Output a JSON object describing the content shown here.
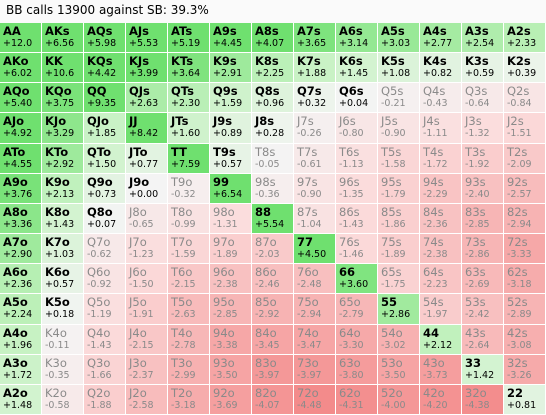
{
  "title": "BB calls 13900 against SB: 39.3%",
  "colors": {
    "call_strong": "#6fe06f",
    "call_light": "#c6f2c2",
    "neutral": "#f4f4f4",
    "fold_light": "#fbdcdc",
    "fold_strong": "#f38a8a"
  },
  "rows": [
    [
      {
        "hand": "AA",
        "ev": "+12.0",
        "call": true
      },
      {
        "hand": "AKs",
        "ev": "+6.56",
        "call": true
      },
      {
        "hand": "AQs",
        "ev": "+5.98",
        "call": true
      },
      {
        "hand": "AJs",
        "ev": "+5.53",
        "call": true
      },
      {
        "hand": "ATs",
        "ev": "+5.19",
        "call": true
      },
      {
        "hand": "A9s",
        "ev": "+4.45",
        "call": true
      },
      {
        "hand": "A8s",
        "ev": "+4.07",
        "call": true
      },
      {
        "hand": "A7s",
        "ev": "+3.65",
        "call": true
      },
      {
        "hand": "A6s",
        "ev": "+3.14",
        "call": true
      },
      {
        "hand": "A5s",
        "ev": "+3.03",
        "call": true
      },
      {
        "hand": "A4s",
        "ev": "+2.77",
        "call": true
      },
      {
        "hand": "A3s",
        "ev": "+2.54",
        "call": true
      },
      {
        "hand": "A2s",
        "ev": "+2.33",
        "call": true
      }
    ],
    [
      {
        "hand": "AKo",
        "ev": "+6.02",
        "call": true
      },
      {
        "hand": "KK",
        "ev": "+10.6",
        "call": true
      },
      {
        "hand": "KQs",
        "ev": "+4.42",
        "call": true
      },
      {
        "hand": "KJs",
        "ev": "+3.99",
        "call": true
      },
      {
        "hand": "KTs",
        "ev": "+3.64",
        "call": true
      },
      {
        "hand": "K9s",
        "ev": "+2.91",
        "call": true
      },
      {
        "hand": "K8s",
        "ev": "+2.25",
        "call": true
      },
      {
        "hand": "K7s",
        "ev": "+1.88",
        "call": true
      },
      {
        "hand": "K6s",
        "ev": "+1.45",
        "call": true
      },
      {
        "hand": "K5s",
        "ev": "+1.08",
        "call": true
      },
      {
        "hand": "K4s",
        "ev": "+0.82",
        "call": true
      },
      {
        "hand": "K3s",
        "ev": "+0.59",
        "call": true
      },
      {
        "hand": "K2s",
        "ev": "+0.39",
        "call": true
      }
    ],
    [
      {
        "hand": "AQo",
        "ev": "+5.40",
        "call": true
      },
      {
        "hand": "KQo",
        "ev": "+3.75",
        "call": true
      },
      {
        "hand": "QQ",
        "ev": "+9.35",
        "call": true
      },
      {
        "hand": "QJs",
        "ev": "+2.63",
        "call": true
      },
      {
        "hand": "QTs",
        "ev": "+2.30",
        "call": true
      },
      {
        "hand": "Q9s",
        "ev": "+1.59",
        "call": true
      },
      {
        "hand": "Q8s",
        "ev": "+0.96",
        "call": true
      },
      {
        "hand": "Q7s",
        "ev": "+0.32",
        "call": true
      },
      {
        "hand": "Q6s",
        "ev": "+0.04",
        "call": true
      },
      {
        "hand": "Q5s",
        "ev": "-0.21",
        "call": false
      },
      {
        "hand": "Q4s",
        "ev": "-0.43",
        "call": false
      },
      {
        "hand": "Q3s",
        "ev": "-0.64",
        "call": false
      },
      {
        "hand": "Q2s",
        "ev": "-0.84",
        "call": false
      }
    ],
    [
      {
        "hand": "AJo",
        "ev": "+4.92",
        "call": true
      },
      {
        "hand": "KJo",
        "ev": "+3.29",
        "call": true
      },
      {
        "hand": "QJo",
        "ev": "+1.85",
        "call": true
      },
      {
        "hand": "JJ",
        "ev": "+8.42",
        "call": true
      },
      {
        "hand": "JTs",
        "ev": "+1.60",
        "call": true
      },
      {
        "hand": "J9s",
        "ev": "+0.89",
        "call": true
      },
      {
        "hand": "J8s",
        "ev": "+0.28",
        "call": true
      },
      {
        "hand": "J7s",
        "ev": "-0.26",
        "call": false
      },
      {
        "hand": "J6s",
        "ev": "-0.80",
        "call": false
      },
      {
        "hand": "J5s",
        "ev": "-0.90",
        "call": false
      },
      {
        "hand": "J4s",
        "ev": "-1.11",
        "call": false
      },
      {
        "hand": "J3s",
        "ev": "-1.32",
        "call": false
      },
      {
        "hand": "J2s",
        "ev": "-1.51",
        "call": false
      }
    ],
    [
      {
        "hand": "ATo",
        "ev": "+4.55",
        "call": true
      },
      {
        "hand": "KTo",
        "ev": "+2.92",
        "call": true
      },
      {
        "hand": "QTo",
        "ev": "+1.50",
        "call": true
      },
      {
        "hand": "JTo",
        "ev": "+0.77",
        "call": true
      },
      {
        "hand": "TT",
        "ev": "+7.59",
        "call": true
      },
      {
        "hand": "T9s",
        "ev": "+0.57",
        "call": true
      },
      {
        "hand": "T8s",
        "ev": "-0.05",
        "call": false
      },
      {
        "hand": "T7s",
        "ev": "-0.61",
        "call": false
      },
      {
        "hand": "T6s",
        "ev": "-1.13",
        "call": false
      },
      {
        "hand": "T5s",
        "ev": "-1.58",
        "call": false
      },
      {
        "hand": "T4s",
        "ev": "-1.72",
        "call": false
      },
      {
        "hand": "T3s",
        "ev": "-1.92",
        "call": false
      },
      {
        "hand": "T2s",
        "ev": "-2.09",
        "call": false
      }
    ],
    [
      {
        "hand": "A9o",
        "ev": "+3.76",
        "call": true
      },
      {
        "hand": "K9o",
        "ev": "+2.13",
        "call": true
      },
      {
        "hand": "Q9o",
        "ev": "+0.73",
        "call": true
      },
      {
        "hand": "J9o",
        "ev": "+0.00",
        "call": true
      },
      {
        "hand": "T9o",
        "ev": "-0.32",
        "call": false
      },
      {
        "hand": "99",
        "ev": "+6.54",
        "call": true
      },
      {
        "hand": "98s",
        "ev": "-0.36",
        "call": false
      },
      {
        "hand": "97s",
        "ev": "-0.90",
        "call": false
      },
      {
        "hand": "96s",
        "ev": "-1.35",
        "call": false
      },
      {
        "hand": "95s",
        "ev": "-1.79",
        "call": false
      },
      {
        "hand": "94s",
        "ev": "-2.29",
        "call": false
      },
      {
        "hand": "93s",
        "ev": "-2.40",
        "call": false
      },
      {
        "hand": "92s",
        "ev": "-2.57",
        "call": false
      }
    ],
    [
      {
        "hand": "A8o",
        "ev": "+3.36",
        "call": true
      },
      {
        "hand": "K8o",
        "ev": "+1.43",
        "call": true
      },
      {
        "hand": "Q8o",
        "ev": "+0.07",
        "call": true
      },
      {
        "hand": "J8o",
        "ev": "-0.65",
        "call": false
      },
      {
        "hand": "T8o",
        "ev": "-0.99",
        "call": false
      },
      {
        "hand": "98o",
        "ev": "-1.31",
        "call": false
      },
      {
        "hand": "88",
        "ev": "+5.54",
        "call": true
      },
      {
        "hand": "87s",
        "ev": "-1.04",
        "call": false
      },
      {
        "hand": "86s",
        "ev": "-1.43",
        "call": false
      },
      {
        "hand": "85s",
        "ev": "-1.86",
        "call": false
      },
      {
        "hand": "84s",
        "ev": "-2.36",
        "call": false
      },
      {
        "hand": "83s",
        "ev": "-2.85",
        "call": false
      },
      {
        "hand": "82s",
        "ev": "-2.94",
        "call": false
      }
    ],
    [
      {
        "hand": "A7o",
        "ev": "+2.90",
        "call": true
      },
      {
        "hand": "K7o",
        "ev": "+1.03",
        "call": true
      },
      {
        "hand": "Q7o",
        "ev": "-0.62",
        "call": false
      },
      {
        "hand": "J7o",
        "ev": "-1.23",
        "call": false
      },
      {
        "hand": "T7o",
        "ev": "-1.59",
        "call": false
      },
      {
        "hand": "97o",
        "ev": "-1.89",
        "call": false
      },
      {
        "hand": "87o",
        "ev": "-2.03",
        "call": false
      },
      {
        "hand": "77",
        "ev": "+4.50",
        "call": true
      },
      {
        "hand": "76s",
        "ev": "-1.46",
        "call": false
      },
      {
        "hand": "75s",
        "ev": "-1.89",
        "call": false
      },
      {
        "hand": "74s",
        "ev": "-2.38",
        "call": false
      },
      {
        "hand": "73s",
        "ev": "-2.86",
        "call": false
      },
      {
        "hand": "72s",
        "ev": "-3.33",
        "call": false
      }
    ],
    [
      {
        "hand": "A6o",
        "ev": "+2.36",
        "call": true
      },
      {
        "hand": "K6o",
        "ev": "+0.57",
        "call": true
      },
      {
        "hand": "Q6o",
        "ev": "-0.92",
        "call": false
      },
      {
        "hand": "J6o",
        "ev": "-1.50",
        "call": false
      },
      {
        "hand": "T6o",
        "ev": "-2.15",
        "call": false
      },
      {
        "hand": "96o",
        "ev": "-2.38",
        "call": false
      },
      {
        "hand": "86o",
        "ev": "-2.46",
        "call": false
      },
      {
        "hand": "76o",
        "ev": "-2.48",
        "call": false
      },
      {
        "hand": "66",
        "ev": "+3.60",
        "call": true
      },
      {
        "hand": "65s",
        "ev": "-1.75",
        "call": false
      },
      {
        "hand": "64s",
        "ev": "-2.23",
        "call": false
      },
      {
        "hand": "63s",
        "ev": "-2.69",
        "call": false
      },
      {
        "hand": "62s",
        "ev": "-3.18",
        "call": false
      }
    ],
    [
      {
        "hand": "A5o",
        "ev": "+2.24",
        "call": true
      },
      {
        "hand": "K5o",
        "ev": "+0.18",
        "call": true
      },
      {
        "hand": "Q5o",
        "ev": "-1.19",
        "call": false
      },
      {
        "hand": "J5o",
        "ev": "-1.91",
        "call": false
      },
      {
        "hand": "T5o",
        "ev": "-2.63",
        "call": false
      },
      {
        "hand": "95o",
        "ev": "-2.85",
        "call": false
      },
      {
        "hand": "85o",
        "ev": "-2.92",
        "call": false
      },
      {
        "hand": "75o",
        "ev": "-2.94",
        "call": false
      },
      {
        "hand": "65o",
        "ev": "-2.79",
        "call": false
      },
      {
        "hand": "55",
        "ev": "+2.86",
        "call": true
      },
      {
        "hand": "54s",
        "ev": "-1.97",
        "call": false
      },
      {
        "hand": "53s",
        "ev": "-2.42",
        "call": false
      },
      {
        "hand": "52s",
        "ev": "-2.89",
        "call": false
      }
    ],
    [
      {
        "hand": "A4o",
        "ev": "+1.96",
        "call": true
      },
      {
        "hand": "K4o",
        "ev": "-0.11",
        "call": false
      },
      {
        "hand": "Q4o",
        "ev": "-1.43",
        "call": false
      },
      {
        "hand": "J4o",
        "ev": "-2.15",
        "call": false
      },
      {
        "hand": "T4o",
        "ev": "-2.78",
        "call": false
      },
      {
        "hand": "94o",
        "ev": "-3.38",
        "call": false
      },
      {
        "hand": "84o",
        "ev": "-3.45",
        "call": false
      },
      {
        "hand": "74o",
        "ev": "-3.47",
        "call": false
      },
      {
        "hand": "64o",
        "ev": "-3.30",
        "call": false
      },
      {
        "hand": "54o",
        "ev": "-3.02",
        "call": false
      },
      {
        "hand": "44",
        "ev": "+2.12",
        "call": true
      },
      {
        "hand": "43s",
        "ev": "-2.64",
        "call": false
      },
      {
        "hand": "42s",
        "ev": "-3.08",
        "call": false
      }
    ],
    [
      {
        "hand": "A3o",
        "ev": "+1.72",
        "call": true
      },
      {
        "hand": "K3o",
        "ev": "-0.35",
        "call": false
      },
      {
        "hand": "Q3o",
        "ev": "-1.66",
        "call": false
      },
      {
        "hand": "J3o",
        "ev": "-2.37",
        "call": false
      },
      {
        "hand": "T3o",
        "ev": "-2.99",
        "call": false
      },
      {
        "hand": "93o",
        "ev": "-3.50",
        "call": false
      },
      {
        "hand": "83o",
        "ev": "-3.97",
        "call": false
      },
      {
        "hand": "73o",
        "ev": "-3.97",
        "call": false
      },
      {
        "hand": "63o",
        "ev": "-3.80",
        "call": false
      },
      {
        "hand": "53o",
        "ev": "-3.50",
        "call": false
      },
      {
        "hand": "43o",
        "ev": "-3.73",
        "call": false
      },
      {
        "hand": "33",
        "ev": "+1.42",
        "call": true
      },
      {
        "hand": "32s",
        "ev": "-3.26",
        "call": false
      }
    ],
    [
      {
        "hand": "A2o",
        "ev": "+1.48",
        "call": true
      },
      {
        "hand": "K2o",
        "ev": "-0.58",
        "call": false
      },
      {
        "hand": "Q2o",
        "ev": "-1.88",
        "call": false
      },
      {
        "hand": "J2o",
        "ev": "-2.58",
        "call": false
      },
      {
        "hand": "T2o",
        "ev": "-3.18",
        "call": false
      },
      {
        "hand": "92o",
        "ev": "-3.69",
        "call": false
      },
      {
        "hand": "82o",
        "ev": "-4.07",
        "call": false
      },
      {
        "hand": "72o",
        "ev": "-4.48",
        "call": false
      },
      {
        "hand": "62o",
        "ev": "-4.31",
        "call": false
      },
      {
        "hand": "52o",
        "ev": "-4.00",
        "call": false
      },
      {
        "hand": "42o",
        "ev": "-4.20",
        "call": false
      },
      {
        "hand": "32o",
        "ev": "-4.38",
        "call": false
      },
      {
        "hand": "22",
        "ev": "+0.81",
        "call": true
      }
    ]
  ]
}
